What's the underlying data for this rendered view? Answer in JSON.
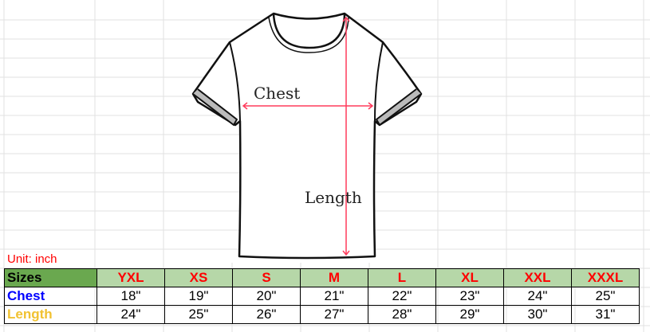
{
  "image": {
    "chest_label": "Chest",
    "length_label": "Length",
    "measure_color": "#ff3b5c"
  },
  "unit": "Unit: inch",
  "table": {
    "header": "Sizes",
    "sizes": [
      "YXL",
      "XS",
      "S",
      "M",
      "L",
      "XL",
      "XXL",
      "XXXL"
    ],
    "rows": [
      {
        "label": "Chest",
        "color": "#0000ff",
        "values": [
          "18\"",
          "19\"",
          "20\"",
          "21\"",
          "22\"",
          "23\"",
          "24\"",
          "25\""
        ]
      },
      {
        "label": "Length",
        "color": "#f1c232",
        "values": [
          "24\"",
          "25\"",
          "26\"",
          "27\"",
          "28\"",
          "29\"",
          "30\"",
          "31\""
        ]
      }
    ]
  },
  "colors": {
    "header_bg": "#6aa84f",
    "size_bg": "#b6d7a8",
    "size_text": "#ff0000"
  }
}
